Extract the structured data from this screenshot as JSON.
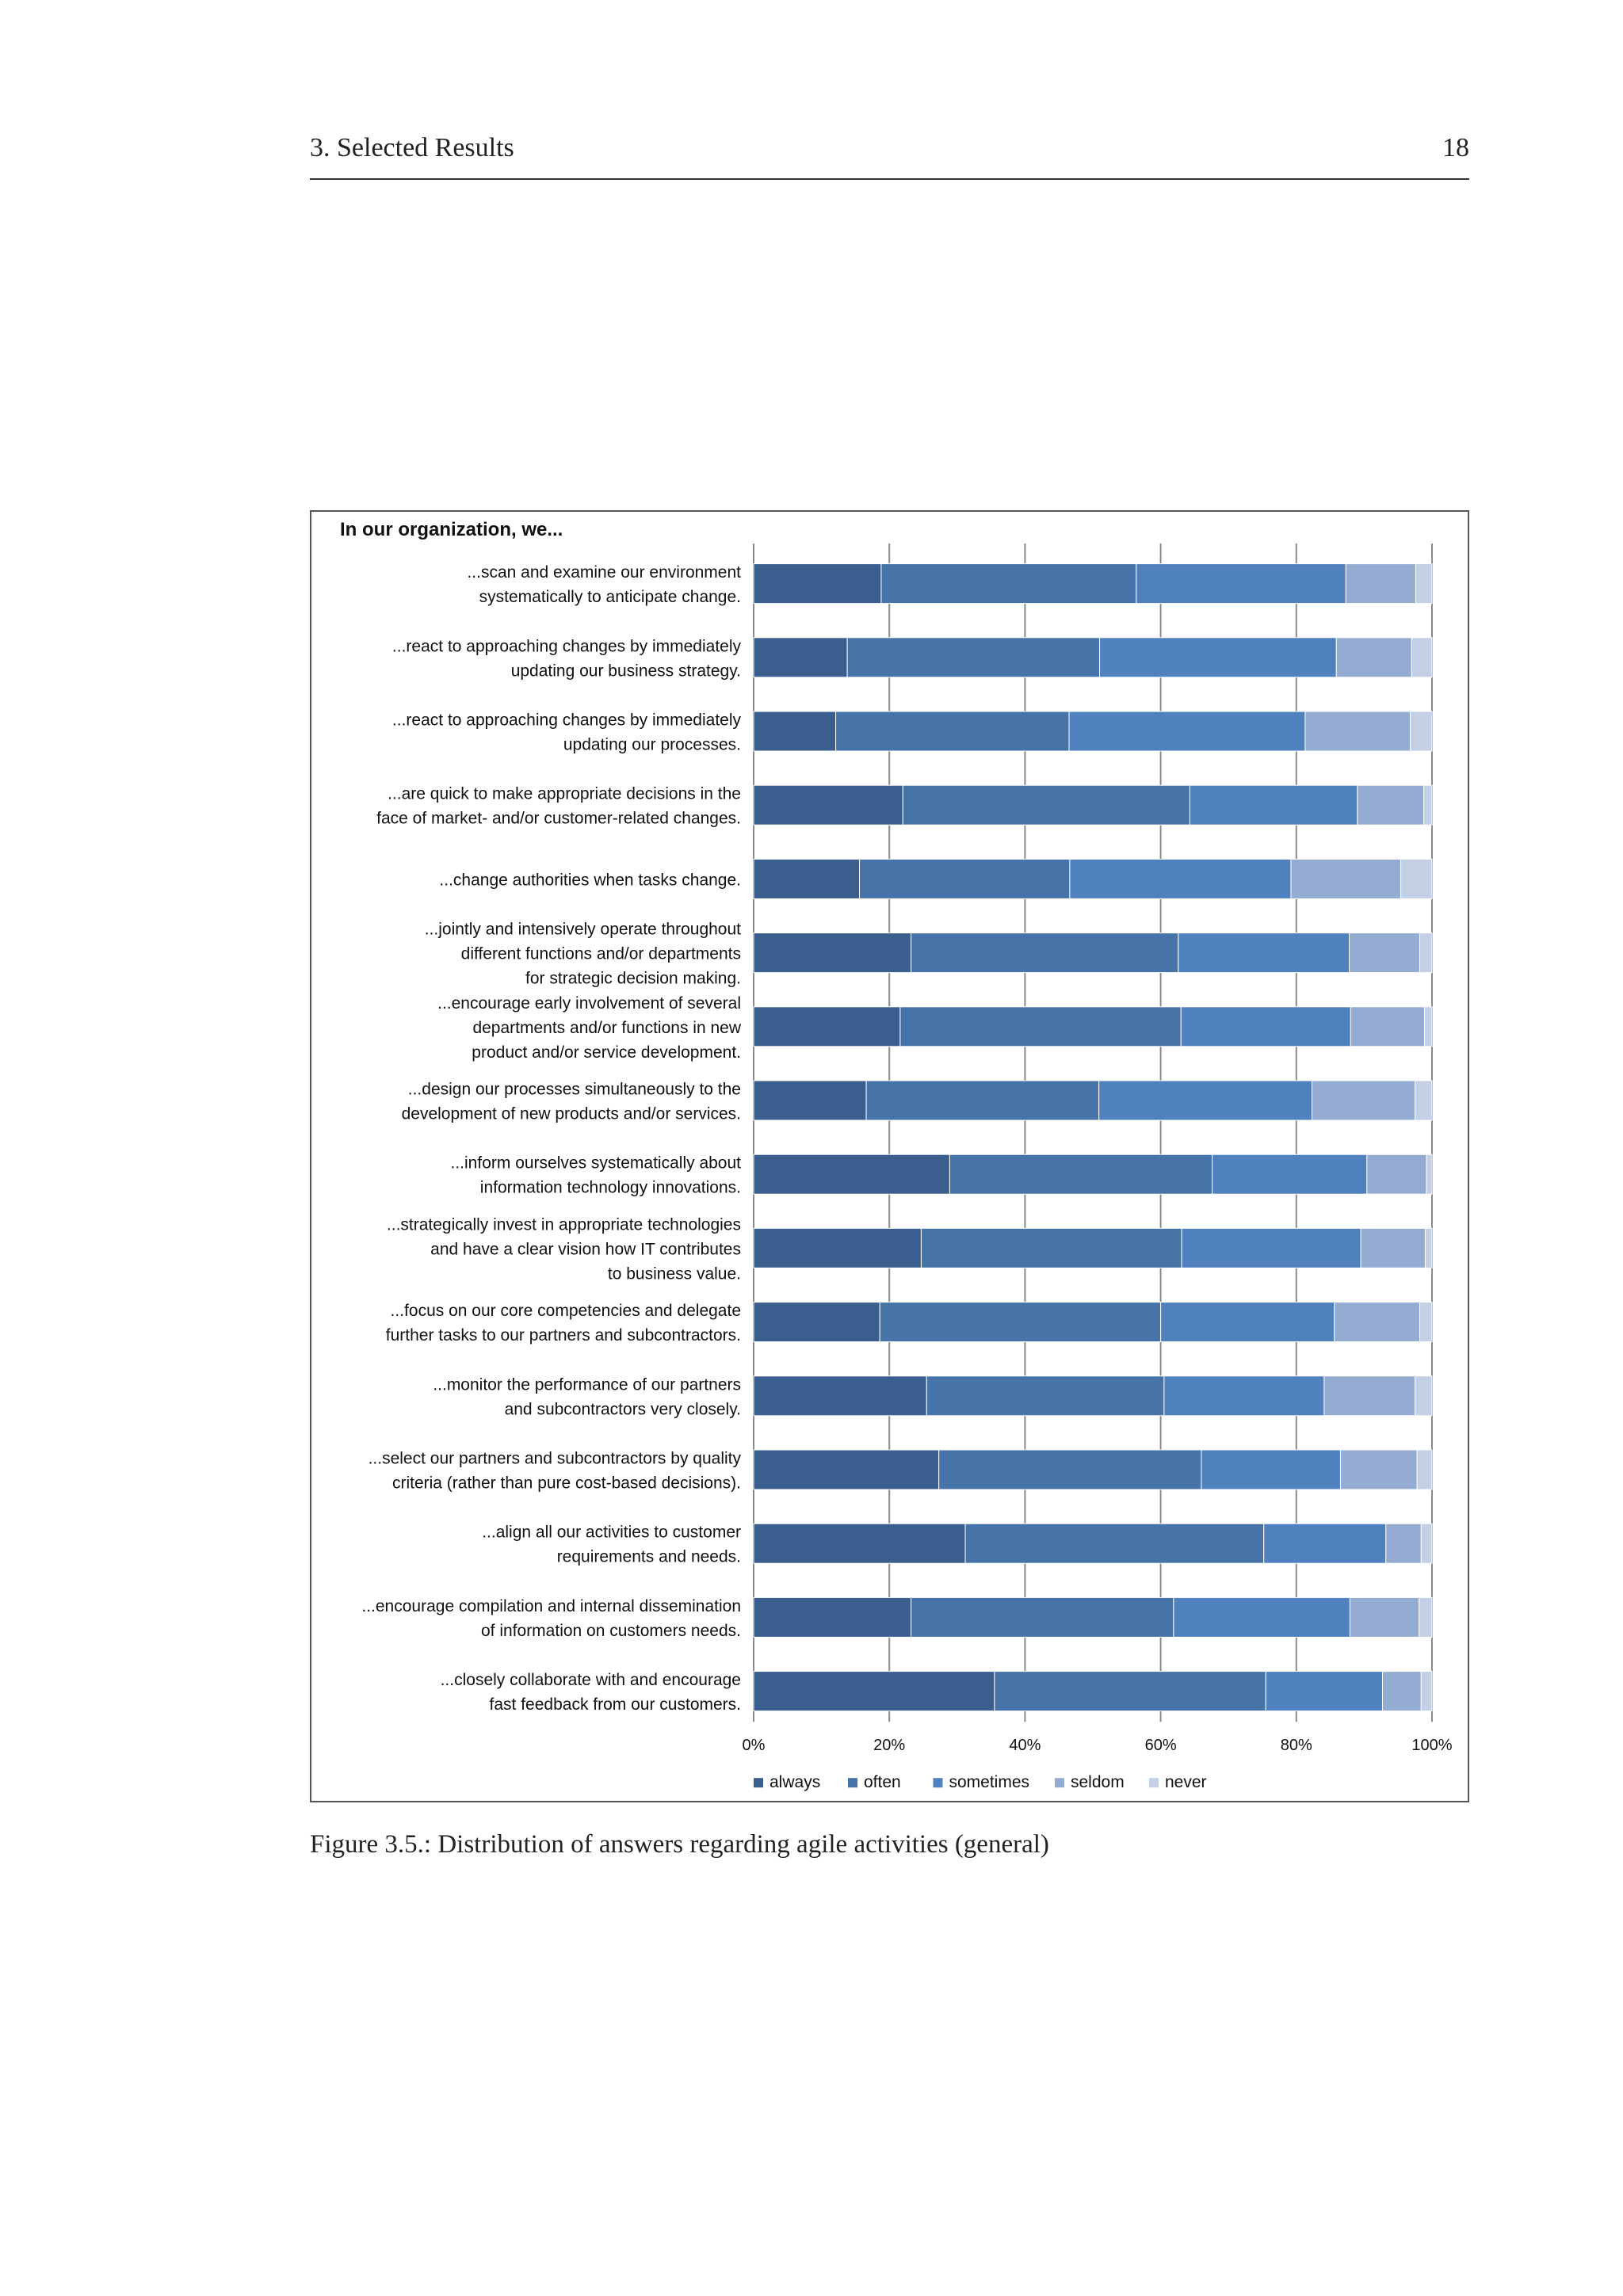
{
  "header": {
    "section": "3.  Selected Results",
    "page_number": "18"
  },
  "caption": "Figure 3.5.: Distribution of answers regarding agile activities (general)",
  "colors": {
    "always": "#3a5f8f",
    "often": "#4774a8",
    "sometimes": "#5081bf",
    "seldom": "#94abd2",
    "never": "#c3cfe4"
  },
  "chart_data": {
    "type": "bar",
    "orientation": "horizontal",
    "stacked": true,
    "percent": true,
    "title": "In our organization, we...",
    "xlabel": "",
    "ylabel": "",
    "xlim": [
      0,
      100
    ],
    "x_ticks": [
      "0%",
      "20%",
      "40%",
      "60%",
      "80%",
      "100%"
    ],
    "legend_position": "bottom",
    "categories": [
      [
        "...scan and examine our environment",
        "systematically to anticipate change."
      ],
      [
        "...react to approaching changes by immediately",
        "updating our business strategy."
      ],
      [
        "...react to approaching changes by immediately",
        "updating our processes."
      ],
      [
        "...are quick to make appropriate decisions in the",
        "face of market- and/or customer-related changes."
      ],
      [
        "...change authorities when tasks change."
      ],
      [
        "...jointly and intensively operate throughout",
        "different functions and/or departments",
        "for strategic decision making."
      ],
      [
        "...encourage early involvement of several",
        "departments and/or functions in new",
        "product and/or service development."
      ],
      [
        "...design our processes simultaneously to the",
        "development of new products and/or services."
      ],
      [
        "...inform ourselves systematically about",
        "information technology innovations."
      ],
      [
        "...strategically invest in appropriate technologies",
        "and have a clear vision how IT contributes",
        "to business value."
      ],
      [
        "...focus on our core competencies and delegate",
        "further tasks to our partners and subcontractors."
      ],
      [
        "...monitor the performance of our partners",
        "and subcontractors very closely."
      ],
      [
        "...select our partners and subcontractors by quality",
        "criteria (rather than pure cost-based decisions)."
      ],
      [
        "...align all our activities to customer",
        "requirements and needs."
      ],
      [
        "...encourage compilation and internal dissemination",
        "of information on customers needs."
      ],
      [
        "...closely collaborate with and encourage",
        "fast feedback from our customers."
      ]
    ],
    "series": [
      {
        "name": "always",
        "values": [
          18.8,
          13.8,
          12.1,
          22.0,
          15.6,
          23.2,
          21.6,
          16.6,
          28.9,
          24.7,
          18.6,
          25.5,
          27.3,
          31.2,
          23.2,
          35.5
        ]
      },
      {
        "name": "often",
        "values": [
          37.6,
          37.2,
          34.4,
          42.3,
          31.0,
          39.4,
          41.4,
          34.3,
          38.7,
          38.4,
          41.4,
          35.0,
          38.7,
          44.0,
          38.7,
          40.0
        ]
      },
      {
        "name": "sometimes",
        "values": [
          30.9,
          34.9,
          34.8,
          24.7,
          32.6,
          25.2,
          25.0,
          31.4,
          22.8,
          26.4,
          25.6,
          23.6,
          20.5,
          18.0,
          26.0,
          17.2
        ]
      },
      {
        "name": "seldom",
        "values": [
          10.3,
          11.1,
          15.5,
          9.8,
          16.2,
          10.4,
          10.9,
          15.2,
          8.8,
          9.5,
          12.6,
          13.4,
          11.3,
          5.2,
          10.2,
          5.7
        ]
      },
      {
        "name": "never",
        "values": [
          2.4,
          3.0,
          3.2,
          1.2,
          4.6,
          1.8,
          1.1,
          2.5,
          0.8,
          1.0,
          1.8,
          2.5,
          2.2,
          1.6,
          1.9,
          1.6
        ]
      }
    ]
  }
}
